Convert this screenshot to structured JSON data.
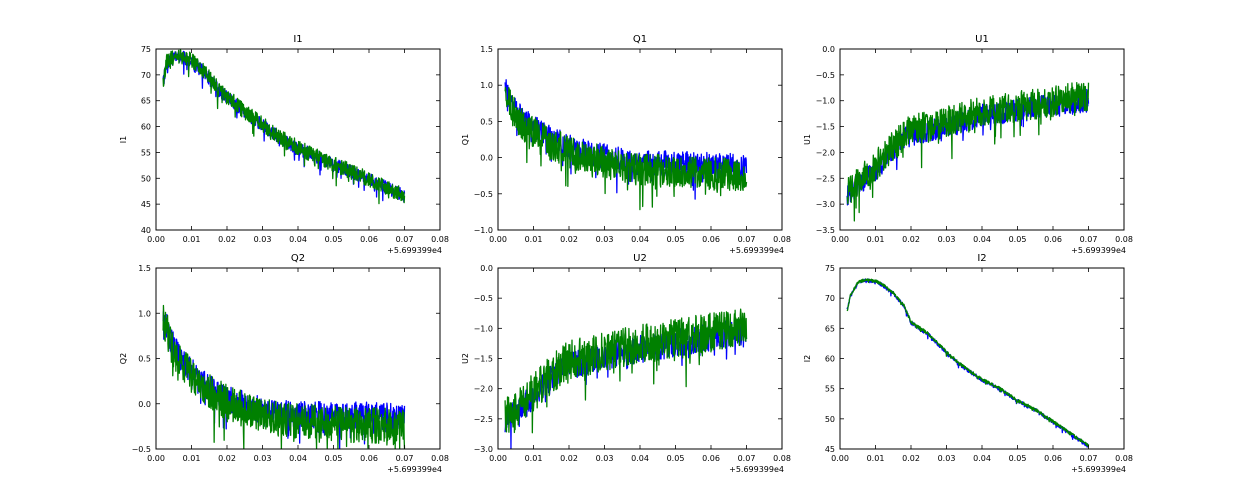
{
  "colors": {
    "series_blue": "#0000ff",
    "series_green": "#008000",
    "background": "#ffffff",
    "axes": "#000000"
  },
  "chart_data": [
    {
      "type": "line",
      "title": "I1",
      "xlabel": "",
      "ylabel": "I1",
      "xlim": [
        0.0,
        0.08
      ],
      "ylim": [
        40,
        75
      ],
      "xticks": [
        "0.00",
        "0.01",
        "0.02",
        "0.03",
        "0.04",
        "0.05",
        "0.06",
        "0.07",
        "0.08"
      ],
      "yticks": [
        "40",
        "45",
        "50",
        "55",
        "60",
        "65",
        "70",
        "75"
      ],
      "x_offset_label": "+5.699399e4",
      "series": [
        {
          "color": "#0000ff",
          "x": [
            0.002,
            0.003,
            0.005,
            0.007,
            0.009,
            0.012,
            0.015,
            0.018,
            0.02,
            0.025,
            0.03,
            0.035,
            0.04,
            0.045,
            0.05,
            0.055,
            0.06,
            0.065,
            0.07
          ],
          "y": [
            68.5,
            72.5,
            73.5,
            73.8,
            73.2,
            72,
            69.5,
            67,
            66,
            63,
            60.5,
            58,
            56,
            54.5,
            53,
            51.5,
            50,
            48.5,
            46.8
          ],
          "noise": 2.5
        },
        {
          "color": "#008000",
          "x": [
            0.002,
            0.003,
            0.005,
            0.007,
            0.009,
            0.012,
            0.015,
            0.018,
            0.02,
            0.025,
            0.03,
            0.035,
            0.04,
            0.045,
            0.05,
            0.055,
            0.06,
            0.065,
            0.07
          ],
          "y": [
            69,
            72.8,
            73.8,
            74,
            73.4,
            72.2,
            69.8,
            67.2,
            66.2,
            63.2,
            60.7,
            58.2,
            56.2,
            54.6,
            53.1,
            51.6,
            50.1,
            48.6,
            46.9
          ],
          "noise": 3.0
        }
      ]
    },
    {
      "type": "line",
      "title": "Q1",
      "xlabel": "",
      "ylabel": "Q1",
      "xlim": [
        0.0,
        0.08
      ],
      "ylim": [
        -1.0,
        1.5
      ],
      "xticks": [
        "0.00",
        "0.01",
        "0.02",
        "0.03",
        "0.04",
        "0.05",
        "0.06",
        "0.07",
        "0.08"
      ],
      "yticks": [
        "−1.0",
        "−0.5",
        "0.0",
        "0.5",
        "1.0",
        "1.5"
      ],
      "x_offset_label": "+5.699399e4",
      "series": [
        {
          "color": "#0000ff",
          "x": [
            0.002,
            0.004,
            0.007,
            0.01,
            0.015,
            0.02,
            0.025,
            0.03,
            0.035,
            0.04,
            0.05,
            0.06,
            0.07
          ],
          "y": [
            1.0,
            0.75,
            0.55,
            0.45,
            0.3,
            0.18,
            0.1,
            0.05,
            0.0,
            -0.03,
            -0.05,
            -0.07,
            -0.08
          ],
          "noise": 0.35
        },
        {
          "color": "#008000",
          "x": [
            0.002,
            0.004,
            0.007,
            0.01,
            0.015,
            0.02,
            0.025,
            0.03,
            0.035,
            0.04,
            0.05,
            0.06,
            0.07
          ],
          "y": [
            0.95,
            0.7,
            0.5,
            0.4,
            0.25,
            0.12,
            0.05,
            -0.02,
            -0.08,
            -0.12,
            -0.15,
            -0.18,
            -0.2
          ],
          "noise": 0.45
        }
      ]
    },
    {
      "type": "line",
      "title": "U1",
      "xlabel": "",
      "ylabel": "U1",
      "xlim": [
        0.0,
        0.08
      ],
      "ylim": [
        -3.5,
        0.0
      ],
      "xticks": [
        "0.00",
        "0.01",
        "0.02",
        "0.03",
        "0.04",
        "0.05",
        "0.06",
        "0.07",
        "0.08"
      ],
      "yticks": [
        "−3.5",
        "−3.0",
        "−2.5",
        "−2.0",
        "−1.5",
        "−1.0",
        "−0.5",
        "0.0"
      ],
      "x_offset_label": "+5.699399e4",
      "series": [
        {
          "color": "#0000ff",
          "x": [
            0.002,
            0.005,
            0.01,
            0.015,
            0.02,
            0.025,
            0.03,
            0.035,
            0.04,
            0.045,
            0.05,
            0.055,
            0.06,
            0.065,
            0.07
          ],
          "y": [
            -2.8,
            -2.6,
            -2.3,
            -1.9,
            -1.6,
            -1.55,
            -1.45,
            -1.35,
            -1.25,
            -1.2,
            -1.15,
            -1.1,
            -1.05,
            -1.0,
            -0.95
          ],
          "noise": 0.45
        },
        {
          "color": "#008000",
          "x": [
            0.002,
            0.005,
            0.01,
            0.015,
            0.02,
            0.025,
            0.03,
            0.035,
            0.04,
            0.045,
            0.05,
            0.055,
            0.06,
            0.065,
            0.07
          ],
          "y": [
            -2.7,
            -2.5,
            -2.2,
            -1.8,
            -1.5,
            -1.45,
            -1.35,
            -1.25,
            -1.15,
            -1.1,
            -1.05,
            -1.0,
            -0.95,
            -0.9,
            -0.85
          ],
          "noise": 0.6
        }
      ]
    },
    {
      "type": "line",
      "title": "Q2",
      "xlabel": "",
      "ylabel": "Q2",
      "xlim": [
        0.0,
        0.08
      ],
      "ylim": [
        -0.5,
        1.5
      ],
      "xticks": [
        "0.00",
        "0.01",
        "0.02",
        "0.03",
        "0.04",
        "0.05",
        "0.06",
        "0.07",
        "0.08"
      ],
      "yticks": [
        "−0.5",
        "0.0",
        "0.5",
        "1.0",
        "1.5"
      ],
      "x_offset_label": "+5.699399e4",
      "series": [
        {
          "color": "#0000ff",
          "x": [
            0.002,
            0.004,
            0.007,
            0.01,
            0.015,
            0.02,
            0.025,
            0.03,
            0.04,
            0.05,
            0.06,
            0.07
          ],
          "y": [
            1.0,
            0.75,
            0.5,
            0.38,
            0.2,
            0.08,
            0.02,
            -0.05,
            -0.08,
            -0.1,
            -0.1,
            -0.12
          ],
          "noise": 0.3
        },
        {
          "color": "#008000",
          "x": [
            0.002,
            0.004,
            0.007,
            0.01,
            0.015,
            0.02,
            0.025,
            0.03,
            0.04,
            0.05,
            0.06,
            0.07
          ],
          "y": [
            1.0,
            0.72,
            0.48,
            0.35,
            0.18,
            0.05,
            -0.02,
            -0.1,
            -0.15,
            -0.18,
            -0.2,
            -0.22
          ],
          "noise": 0.4
        }
      ]
    },
    {
      "type": "line",
      "title": "U2",
      "xlabel": "",
      "ylabel": "U2",
      "xlim": [
        0.0,
        0.08
      ],
      "ylim": [
        -3.0,
        0.0
      ],
      "xticks": [
        "0.00",
        "0.01",
        "0.02",
        "0.03",
        "0.04",
        "0.05",
        "0.06",
        "0.07",
        "0.08"
      ],
      "yticks": [
        "−3.0",
        "−2.5",
        "−2.0",
        "−1.5",
        "−1.0",
        "−0.5",
        "0.0"
      ],
      "x_offset_label": "+5.699399e4",
      "series": [
        {
          "color": "#0000ff",
          "x": [
            0.002,
            0.005,
            0.01,
            0.015,
            0.02,
            0.025,
            0.03,
            0.035,
            0.04,
            0.045,
            0.05,
            0.055,
            0.06,
            0.065,
            0.07
          ],
          "y": [
            -2.5,
            -2.35,
            -2.1,
            -1.8,
            -1.55,
            -1.5,
            -1.42,
            -1.35,
            -1.3,
            -1.25,
            -1.2,
            -1.15,
            -1.1,
            -1.05,
            -1.0
          ],
          "noise": 0.45
        },
        {
          "color": "#008000",
          "x": [
            0.002,
            0.005,
            0.01,
            0.015,
            0.02,
            0.025,
            0.03,
            0.035,
            0.04,
            0.045,
            0.05,
            0.055,
            0.06,
            0.065,
            0.07
          ],
          "y": [
            -2.4,
            -2.25,
            -2.0,
            -1.7,
            -1.45,
            -1.4,
            -1.32,
            -1.25,
            -1.2,
            -1.15,
            -1.1,
            -1.05,
            -1.0,
            -0.95,
            -0.9
          ],
          "noise": 0.65
        }
      ]
    },
    {
      "type": "line",
      "title": "I2",
      "xlabel": "",
      "ylabel": "I2",
      "xlim": [
        0.0,
        0.08
      ],
      "ylim": [
        45,
        75
      ],
      "xticks": [
        "0.00",
        "0.01",
        "0.02",
        "0.03",
        "0.04",
        "0.05",
        "0.06",
        "0.07",
        "0.08"
      ],
      "yticks": [
        "45",
        "50",
        "55",
        "60",
        "65",
        "70",
        "75"
      ],
      "x_offset_label": "+5.699399e4",
      "series": [
        {
          "color": "#0000ff",
          "x": [
            0.002,
            0.003,
            0.005,
            0.007,
            0.01,
            0.012,
            0.015,
            0.018,
            0.02,
            0.025,
            0.03,
            0.035,
            0.04,
            0.045,
            0.05,
            0.055,
            0.06,
            0.065,
            0.07
          ],
          "y": [
            68,
            70.5,
            72.5,
            73,
            72.8,
            72.2,
            70.8,
            68.8,
            66,
            64,
            61,
            58.5,
            56.5,
            55,
            53,
            51.5,
            49.5,
            47.5,
            45.5
          ],
          "noise": 0.6
        },
        {
          "color": "#008000",
          "x": [
            0.002,
            0.003,
            0.005,
            0.007,
            0.01,
            0.012,
            0.015,
            0.018,
            0.02,
            0.025,
            0.03,
            0.035,
            0.04,
            0.045,
            0.05,
            0.055,
            0.06,
            0.065,
            0.07
          ],
          "y": [
            68,
            70.6,
            72.6,
            73.1,
            72.9,
            72.3,
            70.9,
            68.9,
            66.1,
            64.1,
            61.1,
            58.6,
            56.6,
            55.1,
            53.1,
            51.6,
            49.6,
            47.6,
            45.6
          ],
          "noise": 0.5
        }
      ]
    }
  ]
}
